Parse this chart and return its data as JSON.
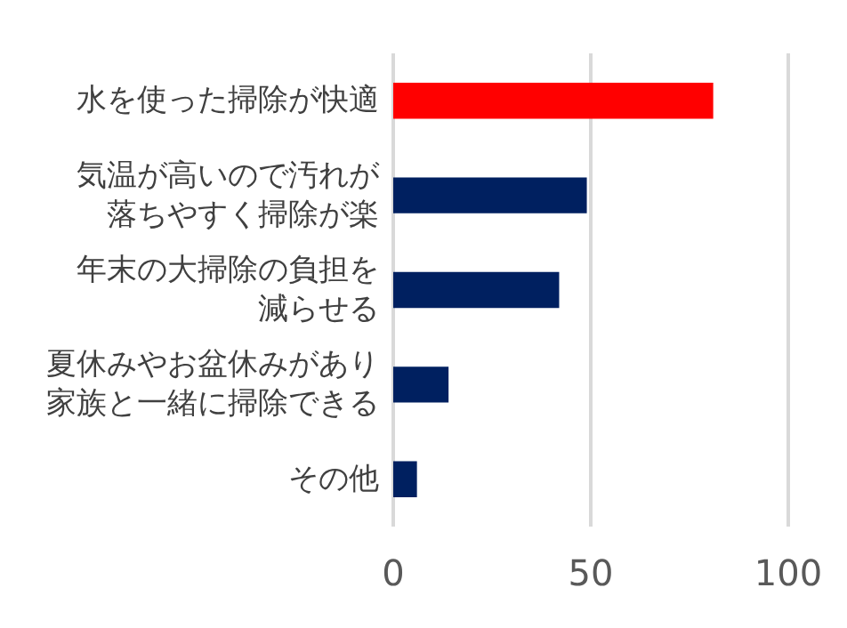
{
  "chart_data": {
    "type": "bar",
    "orientation": "horizontal",
    "categories": [
      "水を使った掃除が快適",
      "気温が高いので汚れが落ちやすく掃除が楽",
      "年末の大掃除の負担を減らせる",
      "夏休みやお盆休みがあり家族と一緒に掃除できる",
      "その他"
    ],
    "values": [
      81,
      49,
      42,
      14,
      6
    ],
    "colors": [
      "#ff0000",
      "#002060",
      "#002060",
      "#002060",
      "#002060"
    ],
    "xlim": [
      0,
      100
    ],
    "xticks": [
      0,
      50,
      100
    ],
    "grid": "x"
  }
}
